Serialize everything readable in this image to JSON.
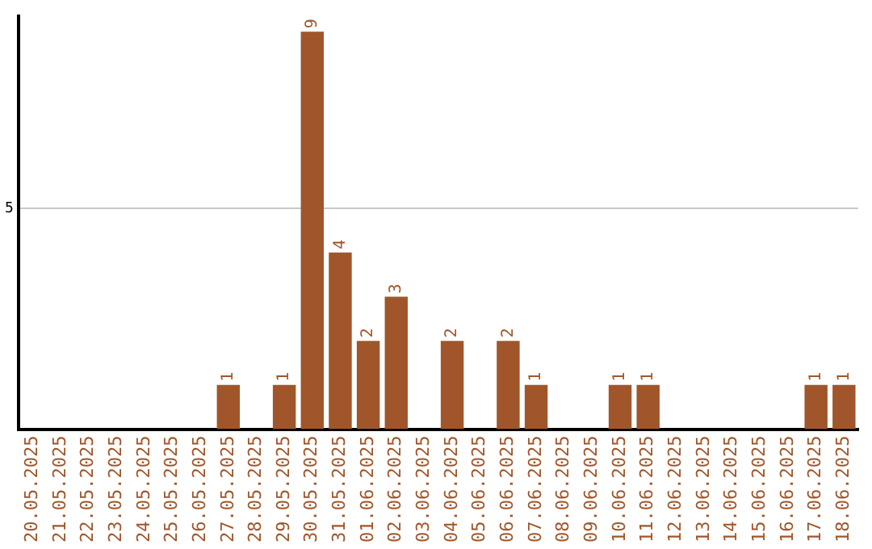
{
  "chart_data": {
    "type": "bar",
    "categories": [
      "20.05.2025",
      "21.05.2025",
      "22.05.2025",
      "23.05.2025",
      "24.05.2025",
      "25.05.2025",
      "26.05.2025",
      "27.05.2025",
      "28.05.2025",
      "29.05.2025",
      "30.05.2025",
      "31.05.2025",
      "01.06.2025",
      "02.06.2025",
      "03.06.2025",
      "04.06.2025",
      "05.06.2025",
      "06.06.2025",
      "07.06.2025",
      "08.06.2025",
      "09.06.2025",
      "10.06.2025",
      "11.06.2025",
      "12.06.2025",
      "13.06.2025",
      "14.06.2025",
      "15.06.2025",
      "16.06.2025",
      "17.06.2025",
      "18.06.2025"
    ],
    "values": [
      0,
      0,
      0,
      0,
      0,
      0,
      0,
      1,
      0,
      1,
      9,
      4,
      2,
      3,
      0,
      2,
      0,
      2,
      1,
      0,
      0,
      1,
      1,
      0,
      0,
      0,
      0,
      0,
      1,
      1
    ],
    "value_labels": [
      null,
      null,
      null,
      null,
      null,
      null,
      null,
      "1",
      null,
      "1",
      "9",
      "4",
      "2",
      "3",
      null,
      "2",
      null,
      "2",
      "1",
      null,
      null,
      "1",
      "1",
      null,
      null,
      null,
      null,
      null,
      "1",
      "1"
    ],
    "color": "#a0562a",
    "ylim": [
      0,
      9.35
    ],
    "yticks": [
      5
    ],
    "grid": "y",
    "legend": false
  }
}
